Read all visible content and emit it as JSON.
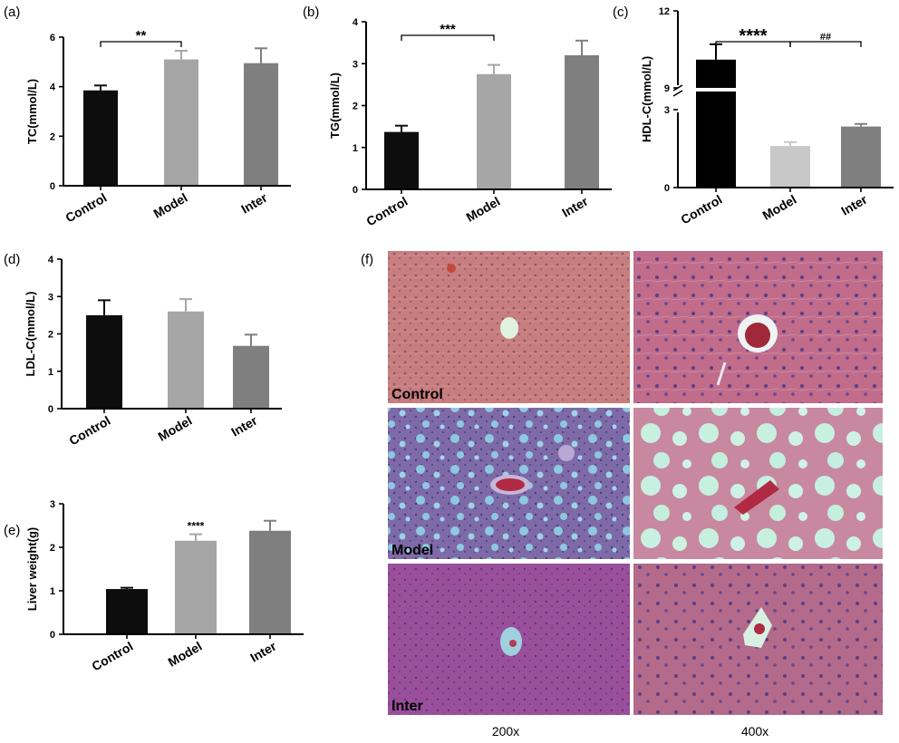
{
  "chart_data": [
    {
      "panel": "(a)",
      "type": "bar",
      "ylabel": "TC(mmol/L)",
      "ylim": [
        0,
        6
      ],
      "yticks": [
        0,
        2,
        4,
        6
      ],
      "categories": [
        "Control",
        "Model",
        "Inter"
      ],
      "values": [
        3.85,
        5.1,
        4.95
      ],
      "errors": [
        0.2,
        0.35,
        0.6
      ],
      "colors": [
        "#0d0d0d",
        "#a6a6a6",
        "#7f7f7f"
      ],
      "annotations": [
        {
          "text": "**",
          "from": 0,
          "to": 1
        }
      ]
    },
    {
      "panel": "(b)",
      "type": "bar",
      "ylabel": "TG(mmol/L)",
      "ylim": [
        0,
        4
      ],
      "yticks": [
        0,
        1,
        2,
        3,
        4
      ],
      "categories": [
        "Control",
        "Model",
        "Inter"
      ],
      "values": [
        1.37,
        2.75,
        3.2
      ],
      "errors": [
        0.15,
        0.22,
        0.35
      ],
      "colors": [
        "#0d0d0d",
        "#a6a6a6",
        "#7f7f7f"
      ],
      "annotations": [
        {
          "text": "***",
          "from": 0,
          "to": 1
        }
      ]
    },
    {
      "panel": "(c)",
      "type": "bar",
      "ylabel": "HDL-C(mmol/L)",
      "axis_break": {
        "lower_range": [
          0,
          3
        ],
        "upper_range": [
          9,
          12
        ],
        "lower_ticks": [
          0,
          3
        ],
        "upper_ticks": [
          9,
          12
        ]
      },
      "categories": [
        "Control",
        "Model",
        "Inter"
      ],
      "values": [
        10.1,
        1.6,
        2.35
      ],
      "errors": [
        0.6,
        0.15,
        0.1
      ],
      "colors": [
        "#000000",
        "#c8c8c8",
        "#7f7f7f"
      ],
      "annotations": [
        {
          "text": "****",
          "from": 0,
          "to": 1
        },
        {
          "text": "##",
          "from": 1,
          "to": 2
        }
      ]
    },
    {
      "panel": "(d)",
      "type": "bar",
      "ylabel": "LDL-C(mmol/L)",
      "ylim": [
        0,
        4
      ],
      "yticks": [
        0,
        1,
        2,
        3,
        4
      ],
      "categories": [
        "Control",
        "Model",
        "Inter"
      ],
      "values": [
        2.5,
        2.6,
        1.68
      ],
      "errors": [
        0.4,
        0.33,
        0.3
      ],
      "colors": [
        "#0d0d0d",
        "#a6a6a6",
        "#7f7f7f"
      ],
      "annotations": []
    },
    {
      "panel": "(e)",
      "type": "bar",
      "ylabel": "Liver weight(g)",
      "ylim": [
        0,
        3
      ],
      "yticks": [
        0,
        1,
        2,
        3
      ],
      "categories": [
        "Control",
        "Model",
        "Inter"
      ],
      "values": [
        1.04,
        2.15,
        2.38
      ],
      "errors": [
        0.03,
        0.15,
        0.23
      ],
      "colors": [
        "#0d0d0d",
        "#a6a6a6",
        "#7f7f7f"
      ],
      "annotations": [
        {
          "text": "****",
          "at": 1
        }
      ]
    }
  ],
  "histology": {
    "panel": "(f)",
    "rows": [
      "Control",
      "Model",
      "Inter"
    ],
    "columns": [
      "200x",
      "400x"
    ]
  }
}
